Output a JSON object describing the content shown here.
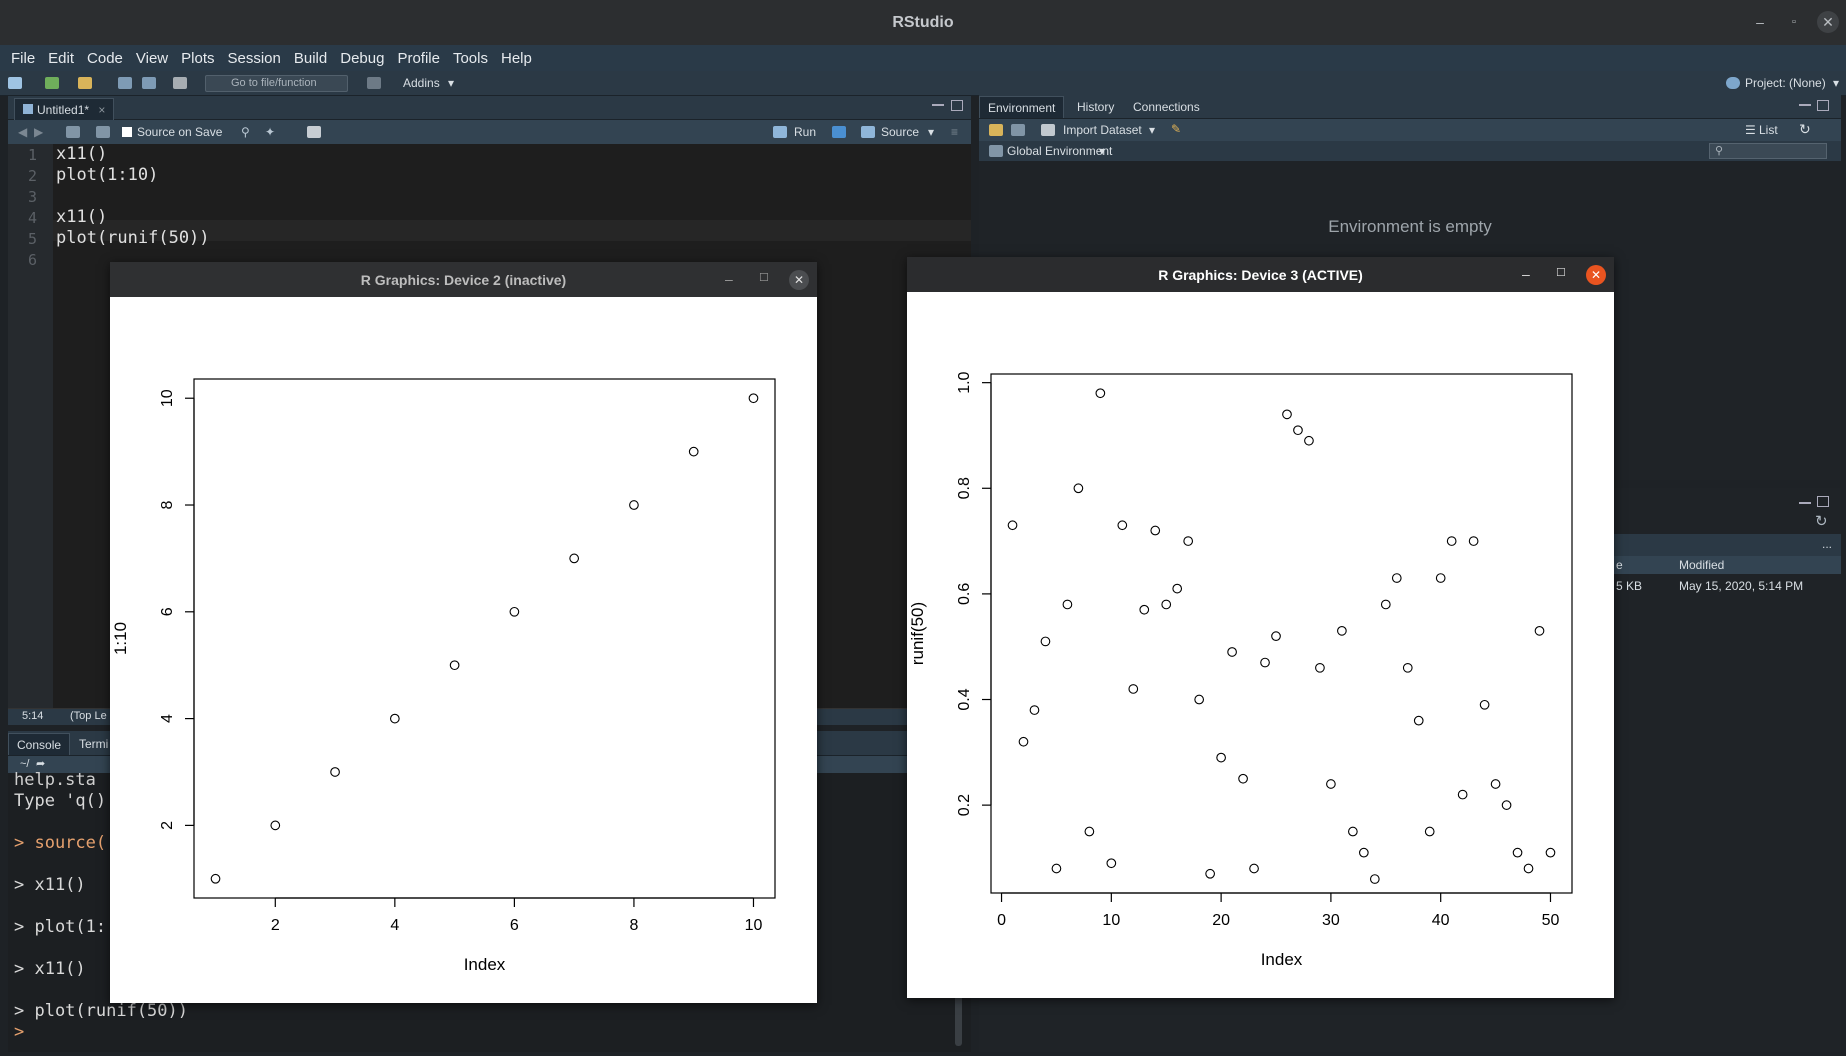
{
  "app": {
    "title": "RStudio"
  },
  "menu": [
    "File",
    "Edit",
    "Code",
    "View",
    "Plots",
    "Session",
    "Build",
    "Debug",
    "Profile",
    "Tools",
    "Help"
  ],
  "toolbar": {
    "goto_placeholder": "Go to file/function",
    "addins_label": "Addins",
    "project_label": "Project: (None)"
  },
  "editor": {
    "tab_label": "Untitled1*",
    "source_on_save_label": "Source on Save",
    "run_label": "Run",
    "source_label": "Source",
    "line_numbers": [
      "1",
      "2",
      "3",
      "4",
      "5",
      "6"
    ],
    "lines": [
      "x11()",
      "plot(1:10)",
      "",
      "x11()",
      "plot(runif(50))",
      ""
    ],
    "cursor_position": "5:14",
    "scope_label": "(Top Le"
  },
  "console": {
    "tabs": [
      "Console",
      "Termi"
    ],
    "path": "~/",
    "lines": [
      "help.sta",
      "Type 'q()",
      "",
      "> source(",
      "",
      "> x11()",
      "",
      "> plot(1:",
      "",
      "> x11()",
      "",
      "> plot(runif(50))",
      ">"
    ]
  },
  "env_pane": {
    "tabs": [
      "Environment",
      "History",
      "Connections"
    ],
    "import_label": "Import Dataset",
    "list_label": "List",
    "scope_label": "Global Environment",
    "empty_message": "Environment is empty"
  },
  "files_pane": {
    "col_modified": "Modified",
    "col_size_fragment": "e",
    "row_size": "5 KB",
    "row_modified": "May 15, 2020, 5:14 PM",
    "more_label": "..."
  },
  "device2": {
    "title": "R Graphics: Device 2 (inactive)"
  },
  "device3": {
    "title": "R Graphics: Device 3 (ACTIVE)"
  },
  "colors": {
    "close_active": "#e95420",
    "close_inactive": "#4b4d50",
    "title_active_text": "#ffffff",
    "title_inactive_text": "#bdbdbd"
  },
  "chart_data": [
    {
      "type": "scatter",
      "xlabel": "Index",
      "ylabel": "1:10",
      "xlim": [
        1,
        10
      ],
      "ylim": [
        1,
        10
      ],
      "xticks": [
        2,
        4,
        6,
        8,
        10
      ],
      "yticks": [
        2,
        4,
        6,
        8,
        10
      ],
      "x": [
        1,
        2,
        3,
        4,
        5,
        6,
        7,
        8,
        9,
        10
      ],
      "y": [
        1,
        2,
        3,
        4,
        5,
        6,
        7,
        8,
        9,
        10
      ]
    },
    {
      "type": "scatter",
      "xlabel": "Index",
      "ylabel": "runif(50)",
      "xlim": [
        1,
        50
      ],
      "ylim": [
        0.07,
        0.98
      ],
      "xticks": [
        0,
        10,
        20,
        30,
        40,
        50
      ],
      "yticks": [
        0.2,
        0.4,
        0.6,
        0.8,
        1.0
      ],
      "yticklabels": [
        "0.2",
        "0.4",
        "0.6",
        "0.8",
        "1.0"
      ],
      "x": [
        1,
        2,
        3,
        4,
        5,
        6,
        7,
        8,
        9,
        10,
        11,
        12,
        13,
        14,
        15,
        16,
        17,
        18,
        19,
        20,
        21,
        22,
        23,
        24,
        25,
        26,
        27,
        28,
        29,
        30,
        31,
        32,
        33,
        34,
        35,
        36,
        37,
        38,
        39,
        40,
        41,
        42,
        43,
        44,
        45,
        46,
        47,
        48,
        49,
        50
      ],
      "y": [
        0.73,
        0.32,
        0.38,
        0.51,
        0.08,
        0.58,
        0.8,
        0.15,
        0.98,
        0.09,
        0.73,
        0.42,
        0.57,
        0.72,
        0.58,
        0.61,
        0.7,
        0.4,
        0.07,
        0.29,
        0.49,
        0.25,
        0.08,
        0.47,
        0.52,
        0.94,
        0.91,
        0.89,
        0.46,
        0.24,
        0.53,
        0.15,
        0.11,
        0.06,
        0.58,
        0.63,
        0.46,
        0.36,
        0.15,
        0.63,
        0.7,
        0.22,
        0.7,
        0.39,
        0.24,
        0.2,
        0.11,
        0.08,
        0.53,
        0.11
      ]
    }
  ]
}
